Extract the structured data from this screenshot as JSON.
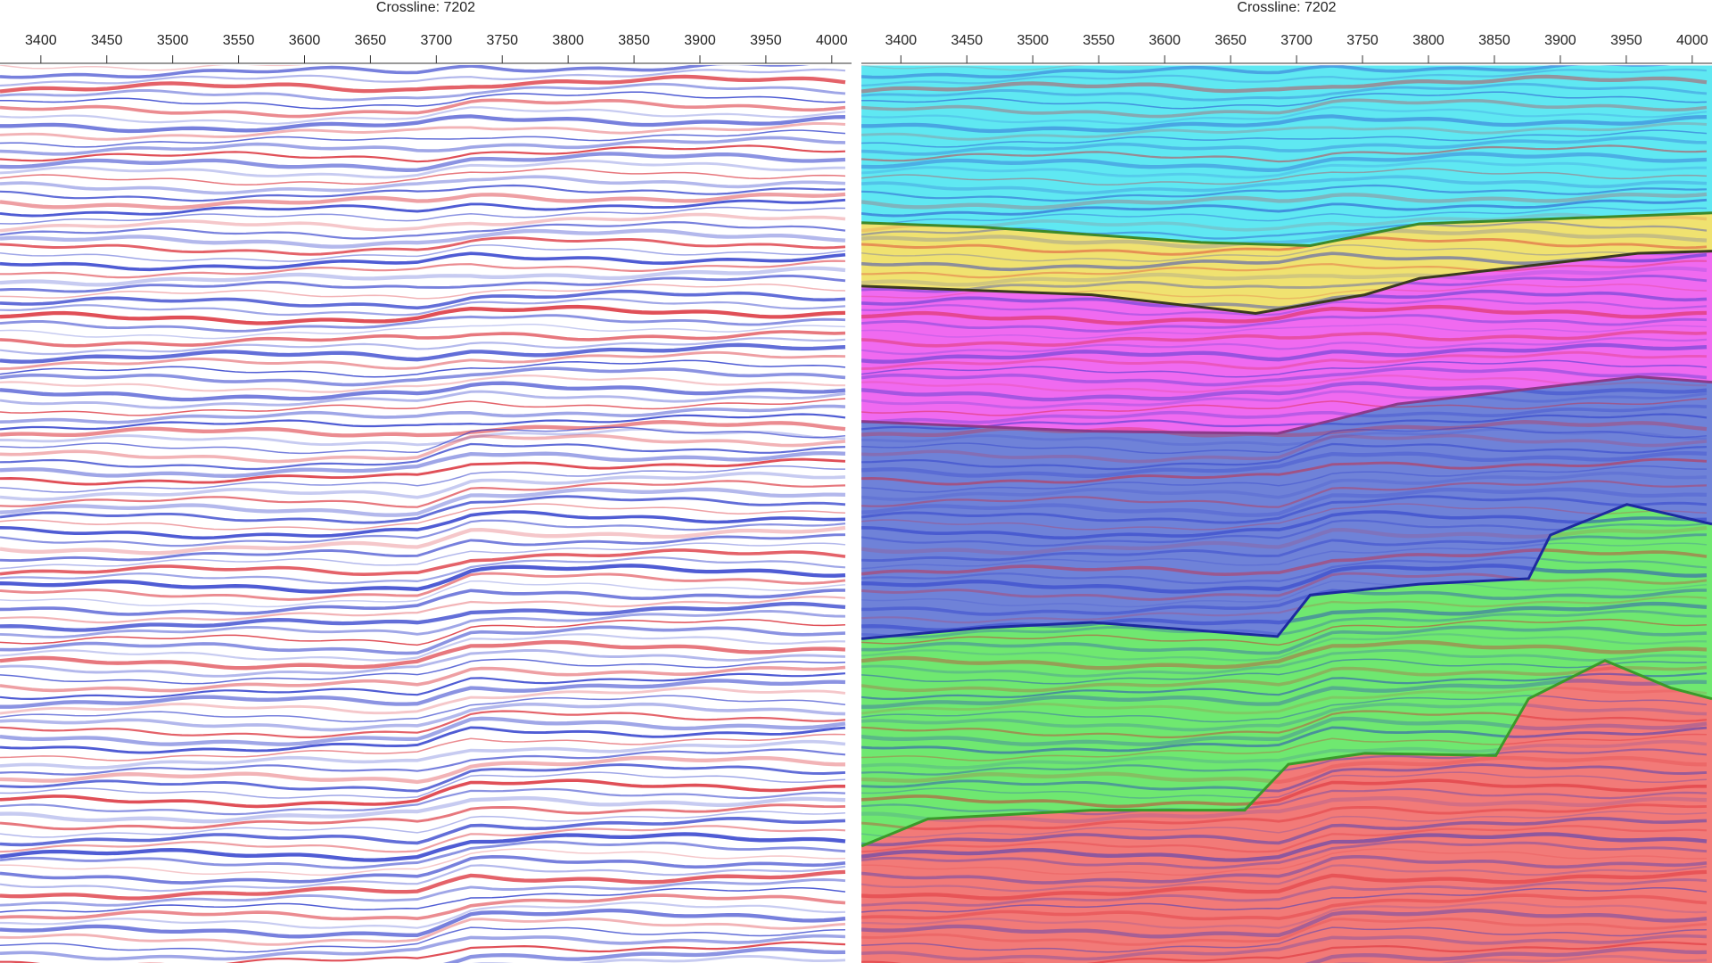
{
  "chart_data": [
    {
      "type": "seismic",
      "title": "Crossline: 7202",
      "xlim": [
        3369,
        4015
      ],
      "xticks": [
        3400,
        3450,
        3500,
        3550,
        3600,
        3650,
        3700,
        3750,
        3800,
        3850,
        3900,
        3950,
        4000
      ]
    },
    {
      "type": "seismic",
      "title": "Crossline: 7202",
      "xlim": [
        3370,
        4015
      ],
      "xticks": [
        3400,
        3450,
        3500,
        3550,
        3600,
        3650,
        3700,
        3750,
        3800,
        3850,
        3900,
        3950,
        4000
      ]
    }
  ]
}
